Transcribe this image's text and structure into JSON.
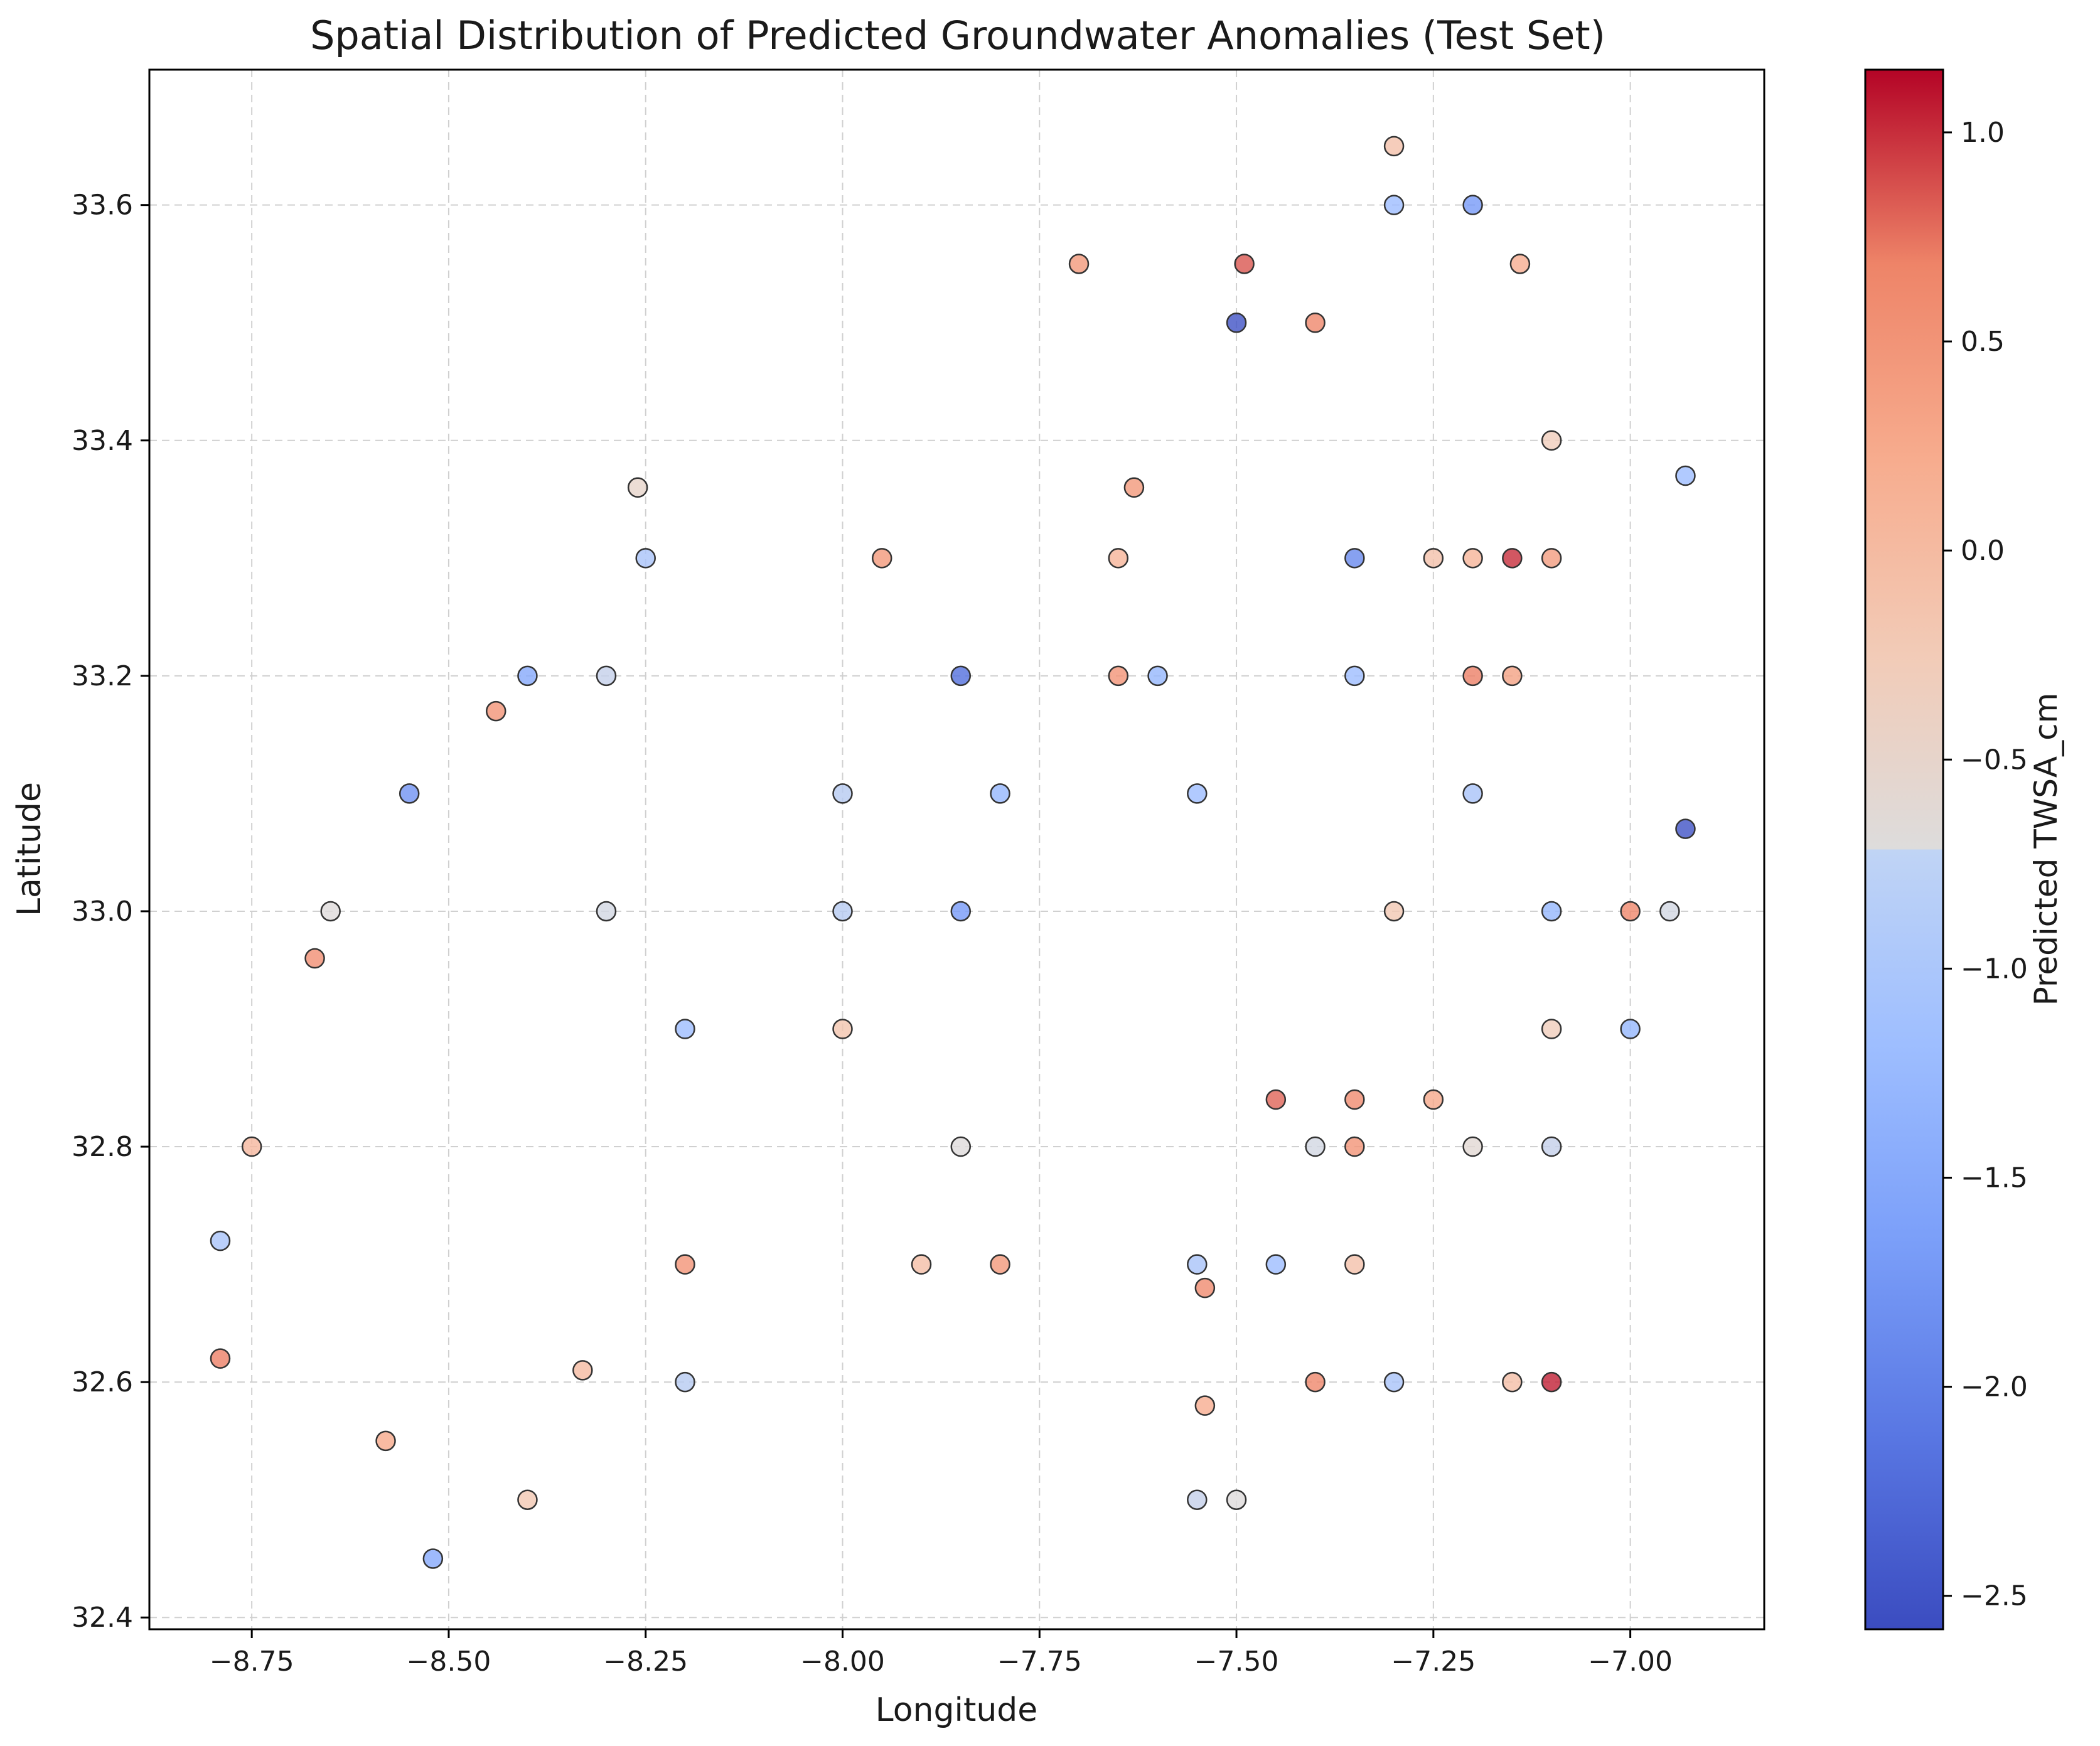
{
  "chart_data": {
    "type": "scatter",
    "title": "Spatial Distribution of Predicted Groundwater Anomalies (Test Set)",
    "xlabel": "Longitude",
    "ylabel": "Latitude",
    "xlim": [
      -8.88,
      -6.83
    ],
    "ylim": [
      32.39,
      33.715
    ],
    "xticks": [
      -8.75,
      -8.5,
      -8.25,
      -8.0,
      -7.75,
      -7.5,
      -7.25,
      -7.0
    ],
    "xtick_labels": [
      "−8.75",
      "−8.50",
      "−8.25",
      "−8.00",
      "−7.75",
      "−7.50",
      "−7.25",
      "−7.00"
    ],
    "yticks": [
      32.4,
      32.6,
      32.8,
      33.0,
      33.2,
      33.4,
      33.6
    ],
    "ytick_labels": [
      "32.4",
      "32.6",
      "32.8",
      "33.0",
      "33.2",
      "33.4",
      "33.6"
    ],
    "grid": true,
    "colormap": "coolwarm",
    "colorbar": {
      "label": "Predicted TWSA_cm",
      "range": [
        -2.58,
        1.15
      ],
      "ticks": [
        -2.5,
        -2.0,
        -1.5,
        -1.0,
        -0.5,
        0.0,
        0.5,
        1.0
      ],
      "tick_labels": [
        "−2.5",
        "−2.0",
        "−1.5",
        "−1.0",
        "−0.5",
        "0.0",
        "0.5",
        "1.0"
      ]
    },
    "points": [
      {
        "x": -7.3,
        "y": 33.65,
        "v": -0.1
      },
      {
        "x": -7.3,
        "y": 33.6,
        "v": -1.2
      },
      {
        "x": -7.2,
        "y": 33.6,
        "v": -1.7
      },
      {
        "x": -7.14,
        "y": 33.55,
        "v": 0.2
      },
      {
        "x": -7.7,
        "y": 33.55,
        "v": 0.45
      },
      {
        "x": -7.49,
        "y": 33.55,
        "v": 0.85
      },
      {
        "x": -7.5,
        "y": 33.5,
        "v": -2.5
      },
      {
        "x": -7.4,
        "y": 33.5,
        "v": 0.65
      },
      {
        "x": -7.1,
        "y": 33.4,
        "v": -0.3
      },
      {
        "x": -6.93,
        "y": 33.37,
        "v": -1.2
      },
      {
        "x": -8.26,
        "y": 33.36,
        "v": -0.5
      },
      {
        "x": -7.63,
        "y": 33.36,
        "v": 0.45
      },
      {
        "x": -8.25,
        "y": 33.3,
        "v": -1.1
      },
      {
        "x": -7.95,
        "y": 33.3,
        "v": 0.45
      },
      {
        "x": -7.65,
        "y": 33.3,
        "v": 0.1
      },
      {
        "x": -7.35,
        "y": 33.3,
        "v": -1.9
      },
      {
        "x": -7.25,
        "y": 33.3,
        "v": -0.1
      },
      {
        "x": -7.2,
        "y": 33.3,
        "v": 0.1
      },
      {
        "x": -7.15,
        "y": 33.3,
        "v": 1.0
      },
      {
        "x": -7.1,
        "y": 33.3,
        "v": 0.4
      },
      {
        "x": -8.4,
        "y": 33.2,
        "v": -1.5
      },
      {
        "x": -8.3,
        "y": 33.2,
        "v": -0.9
      },
      {
        "x": -7.85,
        "y": 33.2,
        "v": -2.2
      },
      {
        "x": -7.65,
        "y": 33.2,
        "v": 0.5
      },
      {
        "x": -7.6,
        "y": 33.2,
        "v": -1.3
      },
      {
        "x": -7.35,
        "y": 33.2,
        "v": -1.2
      },
      {
        "x": -7.2,
        "y": 33.2,
        "v": 0.7
      },
      {
        "x": -7.15,
        "y": 33.2,
        "v": 0.35
      },
      {
        "x": -8.44,
        "y": 33.17,
        "v": 0.5
      },
      {
        "x": -8.55,
        "y": 33.1,
        "v": -1.8
      },
      {
        "x": -8.0,
        "y": 33.1,
        "v": -1.0
      },
      {
        "x": -7.8,
        "y": 33.1,
        "v": -1.3
      },
      {
        "x": -7.55,
        "y": 33.1,
        "v": -1.2
      },
      {
        "x": -7.2,
        "y": 33.1,
        "v": -1.1
      },
      {
        "x": -6.93,
        "y": 33.07,
        "v": -2.5
      },
      {
        "x": -8.65,
        "y": 33.0,
        "v": -0.7
      },
      {
        "x": -8.3,
        "y": 33.0,
        "v": -0.8
      },
      {
        "x": -8.0,
        "y": 33.0,
        "v": -1.0
      },
      {
        "x": -7.85,
        "y": 33.0,
        "v": -1.7
      },
      {
        "x": -7.3,
        "y": 33.0,
        "v": -0.2
      },
      {
        "x": -7.1,
        "y": 33.0,
        "v": -1.3
      },
      {
        "x": -7.0,
        "y": 33.0,
        "v": 0.65
      },
      {
        "x": -6.95,
        "y": 33.0,
        "v": -0.8
      },
      {
        "x": -8.67,
        "y": 32.96,
        "v": 0.55
      },
      {
        "x": -8.2,
        "y": 32.9,
        "v": -1.2
      },
      {
        "x": -8.0,
        "y": 32.9,
        "v": -0.15
      },
      {
        "x": -7.1,
        "y": 32.9,
        "v": -0.3
      },
      {
        "x": -7.0,
        "y": 32.9,
        "v": -1.3
      },
      {
        "x": -7.45,
        "y": 32.84,
        "v": 0.8
      },
      {
        "x": -7.35,
        "y": 32.84,
        "v": 0.6
      },
      {
        "x": -7.25,
        "y": 32.84,
        "v": 0.25
      },
      {
        "x": -8.75,
        "y": 32.8,
        "v": 0.05
      },
      {
        "x": -7.85,
        "y": 32.8,
        "v": -0.7
      },
      {
        "x": -7.4,
        "y": 32.8,
        "v": -0.8
      },
      {
        "x": -7.35,
        "y": 32.8,
        "v": 0.5
      },
      {
        "x": -7.2,
        "y": 32.8,
        "v": -0.6
      },
      {
        "x": -7.1,
        "y": 32.8,
        "v": -0.9
      },
      {
        "x": -8.79,
        "y": 32.72,
        "v": -1.1
      },
      {
        "x": -8.2,
        "y": 32.7,
        "v": 0.5
      },
      {
        "x": -7.9,
        "y": 32.7,
        "v": -0.05
      },
      {
        "x": -7.8,
        "y": 32.7,
        "v": 0.45
      },
      {
        "x": -7.55,
        "y": 32.7,
        "v": -1.1
      },
      {
        "x": -7.45,
        "y": 32.7,
        "v": -1.2
      },
      {
        "x": -7.35,
        "y": 32.7,
        "v": -0.1
      },
      {
        "x": -7.54,
        "y": 32.68,
        "v": 0.6
      },
      {
        "x": -8.79,
        "y": 32.62,
        "v": 0.7
      },
      {
        "x": -8.33,
        "y": 32.61,
        "v": 0.0
      },
      {
        "x": -8.2,
        "y": 32.6,
        "v": -1.0
      },
      {
        "x": -7.4,
        "y": 32.6,
        "v": 0.65
      },
      {
        "x": -7.3,
        "y": 32.6,
        "v": -1.1
      },
      {
        "x": -7.15,
        "y": 32.6,
        "v": -0.05
      },
      {
        "x": -7.1,
        "y": 32.6,
        "v": 1.05
      },
      {
        "x": -7.54,
        "y": 32.58,
        "v": 0.2
      },
      {
        "x": -8.58,
        "y": 32.55,
        "v": 0.25
      },
      {
        "x": -7.55,
        "y": 32.5,
        "v": -0.9
      },
      {
        "x": -7.5,
        "y": 32.5,
        "v": -0.7
      },
      {
        "x": -8.4,
        "y": 32.5,
        "v": -0.2
      },
      {
        "x": -8.52,
        "y": 32.45,
        "v": -1.5
      }
    ]
  }
}
